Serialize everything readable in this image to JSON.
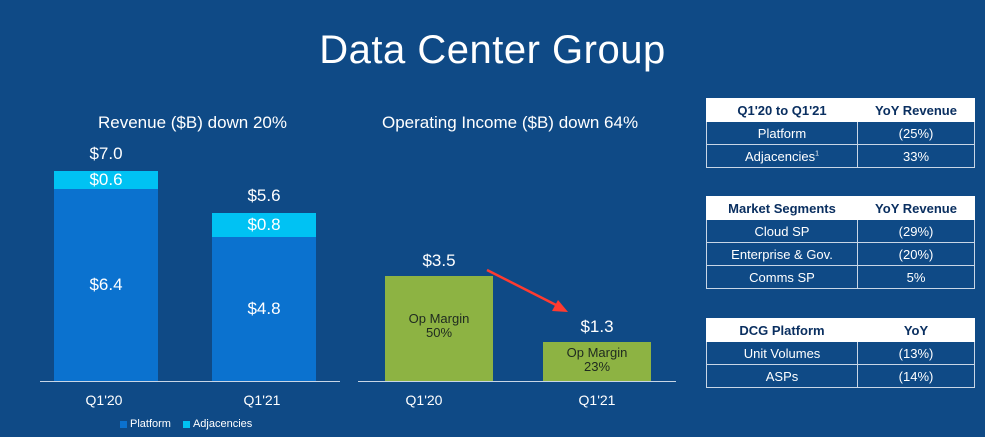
{
  "page_title": "Data Center Group",
  "colors": {
    "background": "#0f4a86",
    "platform": "#0b72cf",
    "adjacencies": "#00c2f3",
    "op_income": "#8db343",
    "arrow": "#ff3b30"
  },
  "chart_data": [
    {
      "type": "bar",
      "title": "Revenue ($B) down 20%",
      "categories": [
        "Q1'20",
        "Q1'21"
      ],
      "series": [
        {
          "name": "Platform",
          "values": [
            6.4,
            4.8
          ]
        },
        {
          "name": "Adjacencies",
          "values": [
            0.6,
            0.8
          ]
        }
      ],
      "totals": [
        7.0,
        5.6
      ],
      "labels": {
        "platform": [
          "$6.4",
          "$4.8"
        ],
        "adjacencies": [
          "$0.6",
          "$0.8"
        ],
        "totals": [
          "$7.0",
          "$5.6"
        ]
      },
      "legend": [
        "Platform",
        "Adjacencies"
      ],
      "stacked": true,
      "ylim": [
        0,
        7.0
      ]
    },
    {
      "type": "bar",
      "title": "Operating Income ($B) down 64%",
      "categories": [
        "Q1'20",
        "Q1'21"
      ],
      "values": [
        3.5,
        1.3
      ],
      "labels": [
        "$3.5",
        "$1.3"
      ],
      "annotations": [
        {
          "label": "Op Margin",
          "value": "50%"
        },
        {
          "label": "Op Margin",
          "value": "23%"
        }
      ],
      "ylim": [
        0,
        7.0
      ]
    }
  ],
  "tables": [
    {
      "headers": [
        "Q1'20 to Q1'21",
        "YoY Revenue"
      ],
      "rows": [
        [
          "Platform",
          "(25%)"
        ],
        [
          "Adjacencies",
          "33%"
        ]
      ],
      "footnote_marker": "1"
    },
    {
      "headers": [
        "Market Segments",
        "YoY Revenue"
      ],
      "rows": [
        [
          "Cloud SP",
          "(29%)"
        ],
        [
          "Enterprise & Gov.",
          "(20%)"
        ],
        [
          "Comms SP",
          "5%"
        ]
      ]
    },
    {
      "headers": [
        "DCG Platform",
        "YoY"
      ],
      "rows": [
        [
          "Unit Volumes",
          "(13%)"
        ],
        [
          "ASPs",
          "(14%)"
        ]
      ]
    }
  ]
}
